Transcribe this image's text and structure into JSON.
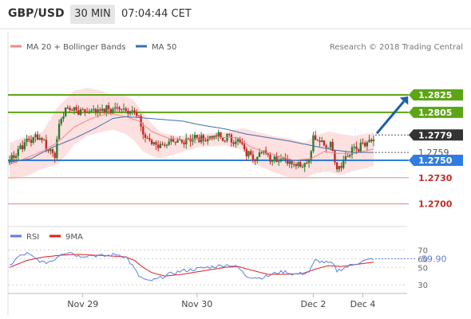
{
  "header": {
    "pair": "GBP/USD",
    "timeframe": "30 MIN",
    "time": "07:04:44 CET"
  },
  "legend": {
    "ma20": "MA 20 + Bollinger Bands",
    "ma50": "MA 50",
    "credit": "Research © 2018 Trading Central"
  },
  "rsi_legend": {
    "rsi": "RSI",
    "ma9": "9MA"
  },
  "colors": {
    "up": "#2e7d32",
    "down": "#c62828",
    "bollinger": "#fcd5d5",
    "ma20": "#f08a8a",
    "ma50": "#3f6faa",
    "resistance": "#5ea516",
    "support": "#2f7de1",
    "target_support": "#e59a9a",
    "arrow": "#1f5fa8",
    "rsi": "#5b7fe0",
    "rsi_ma": "#e02020"
  },
  "chart_data": [
    {
      "type": "candlestick",
      "title": "GBP/USD 30 MIN",
      "x_labels": [
        "Nov 29",
        "Nov 30",
        "Dec 2",
        "Dec 4"
      ],
      "ylim": [
        1.2685,
        1.2868
      ],
      "last_price": "1.2779",
      "arrow": {
        "from": 1.2779,
        "to": 1.2825
      },
      "levels": [
        {
          "value": "1.2825",
          "kind": "resistance",
          "role": "target"
        },
        {
          "value": "1.2805",
          "kind": "resistance",
          "role": "target"
        },
        {
          "value": "1.2779",
          "kind": "last",
          "role": "last price"
        },
        {
          "value": "1.2759",
          "kind": "pivot",
          "role": "pivot"
        },
        {
          "value": "1.2750",
          "kind": "support",
          "role": "pivot"
        },
        {
          "value": "1.2730",
          "kind": "support2",
          "role": "support"
        },
        {
          "value": "1.2700",
          "kind": "support2",
          "role": "support"
        }
      ],
      "series_anchors": {
        "close": [
          [
            0,
            1.275
          ],
          [
            5,
            1.2765
          ],
          [
            8,
            1.2772
          ],
          [
            14,
            1.2778
          ],
          [
            18,
            1.2762
          ],
          [
            21,
            1.2758
          ],
          [
            24,
            1.28
          ],
          [
            27,
            1.281
          ],
          [
            33,
            1.2806
          ],
          [
            40,
            1.2808
          ],
          [
            46,
            1.2808
          ],
          [
            52,
            1.281
          ],
          [
            58,
            1.2806
          ],
          [
            61,
            1.279
          ],
          [
            63,
            1.2775
          ],
          [
            68,
            1.2768
          ],
          [
            72,
            1.2768
          ],
          [
            78,
            1.277
          ],
          [
            84,
            1.2776
          ],
          [
            90,
            1.2774
          ],
          [
            96,
            1.2778
          ],
          [
            100,
            1.2774
          ],
          [
            102,
            1.2778
          ],
          [
            104,
            1.277
          ],
          [
            106,
            1.2775
          ],
          [
            109,
            1.276
          ],
          [
            114,
            1.2754
          ],
          [
            118,
            1.276
          ],
          [
            122,
            1.2752
          ],
          [
            127,
            1.2752
          ],
          [
            132,
            1.2747
          ],
          [
            136,
            1.2745
          ],
          [
            139,
            1.275
          ],
          [
            141,
            1.2775
          ],
          [
            144,
            1.277
          ],
          [
            147,
            1.2768
          ],
          [
            150,
            1.2765
          ],
          [
            152,
            1.274
          ],
          [
            155,
            1.275
          ],
          [
            157,
            1.2755
          ],
          [
            159,
            1.2762
          ],
          [
            162,
            1.2765
          ],
          [
            165,
            1.2768
          ],
          [
            167,
            1.277
          ],
          [
            169,
            1.2773
          ]
        ],
        "ma20": [
          [
            0,
            1.2745
          ],
          [
            15,
            1.276
          ],
          [
            22,
            1.277
          ],
          [
            30,
            1.2788
          ],
          [
            38,
            1.2798
          ],
          [
            46,
            1.2804
          ],
          [
            54,
            1.28
          ],
          [
            60,
            1.2795
          ],
          [
            66,
            1.2783
          ],
          [
            74,
            1.2775
          ],
          [
            84,
            1.2773
          ],
          [
            96,
            1.2776
          ],
          [
            106,
            1.2776
          ],
          [
            112,
            1.2765
          ],
          [
            122,
            1.2757
          ],
          [
            132,
            1.275
          ],
          [
            140,
            1.2752
          ],
          [
            146,
            1.276
          ],
          [
            152,
            1.2758
          ],
          [
            160,
            1.2758
          ],
          [
            169,
            1.2763
          ]
        ],
        "bb_upper": [
          [
            0,
            1.277
          ],
          [
            8,
            1.2778
          ],
          [
            15,
            1.2782
          ],
          [
            22,
            1.281
          ],
          [
            26,
            1.282
          ],
          [
            30,
            1.283
          ],
          [
            36,
            1.2833
          ],
          [
            42,
            1.283
          ],
          [
            48,
            1.2825
          ],
          [
            54,
            1.2824
          ],
          [
            58,
            1.2818
          ],
          [
            62,
            1.2804
          ],
          [
            66,
            1.2792
          ],
          [
            70,
            1.2782
          ],
          [
            78,
            1.2778
          ],
          [
            88,
            1.278
          ],
          [
            100,
            1.2782
          ],
          [
            108,
            1.2787
          ],
          [
            114,
            1.2783
          ],
          [
            122,
            1.2778
          ],
          [
            130,
            1.2775
          ],
          [
            137,
            1.277
          ],
          [
            142,
            1.2778
          ],
          [
            148,
            1.2783
          ],
          [
            154,
            1.278
          ],
          [
            160,
            1.2778
          ],
          [
            169,
            1.2782
          ]
        ],
        "bb_lower": [
          [
            0,
            1.2728
          ],
          [
            8,
            1.2732
          ],
          [
            15,
            1.274
          ],
          [
            22,
            1.2745
          ],
          [
            26,
            1.2755
          ],
          [
            30,
            1.2768
          ],
          [
            36,
            1.2778
          ],
          [
            42,
            1.2782
          ],
          [
            48,
            1.2785
          ],
          [
            54,
            1.278
          ],
          [
            58,
            1.2772
          ],
          [
            62,
            1.276
          ],
          [
            66,
            1.2755
          ],
          [
            70,
            1.2752
          ],
          [
            78,
            1.2758
          ],
          [
            88,
            1.2765
          ],
          [
            100,
            1.2767
          ],
          [
            108,
            1.2762
          ],
          [
            114,
            1.2745
          ],
          [
            122,
            1.2737
          ],
          [
            130,
            1.273
          ],
          [
            137,
            1.273
          ],
          [
            142,
            1.2735
          ],
          [
            148,
            1.2737
          ],
          [
            154,
            1.2733
          ],
          [
            160,
            1.2738
          ],
          [
            169,
            1.2743
          ]
        ],
        "ma50": [
          [
            0,
            1.2748
          ],
          [
            10,
            1.2752
          ],
          [
            20,
            1.2765
          ],
          [
            30,
            1.2775
          ],
          [
            40,
            1.2787
          ],
          [
            48,
            1.2798
          ],
          [
            54,
            1.28
          ],
          [
            60,
            1.2799
          ],
          [
            70,
            1.2797
          ],
          [
            80,
            1.2795
          ],
          [
            90,
            1.279
          ],
          [
            100,
            1.2786
          ],
          [
            110,
            1.278
          ],
          [
            120,
            1.2776
          ],
          [
            130,
            1.2772
          ],
          [
            140,
            1.2767
          ],
          [
            150,
            1.2762
          ],
          [
            160,
            1.2759
          ],
          [
            169,
            1.2759
          ]
        ]
      }
    },
    {
      "type": "line",
      "title": "RSI",
      "ylim": [
        20,
        75
      ],
      "y_ticks": [
        "70",
        "60",
        "50",
        "30"
      ],
      "last_value": "59.90",
      "series": [
        {
          "name": "RSI",
          "anchors": [
            [
              0,
              52
            ],
            [
              4,
              62
            ],
            [
              8,
              66
            ],
            [
              12,
              60
            ],
            [
              16,
              55
            ],
            [
              20,
              58
            ],
            [
              24,
              66
            ],
            [
              28,
              68
            ],
            [
              32,
              63
            ],
            [
              38,
              64
            ],
            [
              44,
              63
            ],
            [
              50,
              65
            ],
            [
              54,
              62
            ],
            [
              57,
              52
            ],
            [
              60,
              40
            ],
            [
              64,
              34
            ],
            [
              68,
              36
            ],
            [
              74,
              42
            ],
            [
              80,
              46
            ],
            [
              86,
              48
            ],
            [
              92,
              50
            ],
            [
              98,
              52
            ],
            [
              102,
              53
            ],
            [
              106,
              50
            ],
            [
              110,
              40
            ],
            [
              116,
              38
            ],
            [
              120,
              40
            ],
            [
              124,
              44
            ],
            [
              128,
              45
            ],
            [
              132,
              42
            ],
            [
              136,
              43
            ],
            [
              139,
              45
            ],
            [
              142,
              58
            ],
            [
              146,
              56
            ],
            [
              150,
              54
            ],
            [
              152,
              46
            ],
            [
              156,
              50
            ],
            [
              160,
              54
            ],
            [
              164,
              57
            ],
            [
              169,
              60
            ]
          ]
        },
        {
          "name": "9MA",
          "anchors": [
            [
              0,
              50
            ],
            [
              8,
              58
            ],
            [
              16,
              62
            ],
            [
              24,
              64
            ],
            [
              32,
              65
            ],
            [
              40,
              64
            ],
            [
              48,
              63
            ],
            [
              54,
              62
            ],
            [
              58,
              58
            ],
            [
              62,
              50
            ],
            [
              66,
              44
            ],
            [
              72,
              40
            ],
            [
              80,
              42
            ],
            [
              90,
              46
            ],
            [
              100,
              50
            ],
            [
              106,
              51
            ],
            [
              112,
              47
            ],
            [
              120,
              42
            ],
            [
              128,
              42
            ],
            [
              136,
              43
            ],
            [
              142,
              48
            ],
            [
              148,
              52
            ],
            [
              154,
              51
            ],
            [
              160,
              53
            ],
            [
              169,
              56
            ]
          ]
        }
      ]
    }
  ]
}
